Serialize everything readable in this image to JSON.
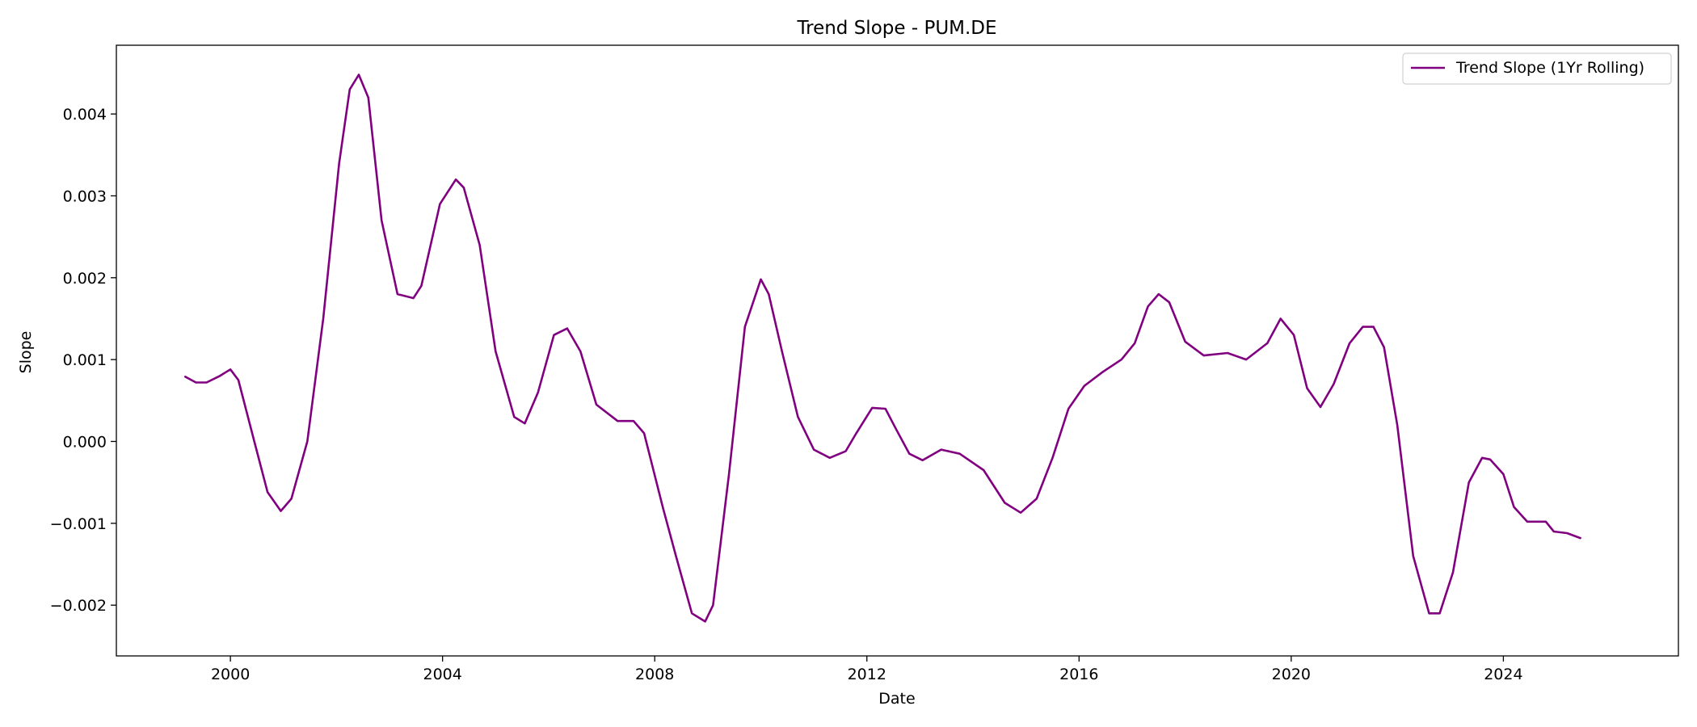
{
  "chart_data": {
    "type": "line",
    "title": "Trend Slope - PUM.DE",
    "xlabel": "Date",
    "ylabel": "Slope",
    "xlim": [
      1997.85,
      2027.3
    ],
    "ylim": [
      -0.00262,
      0.00484
    ],
    "x_ticks": [
      2000,
      2004,
      2008,
      2012,
      2016,
      2020,
      2024
    ],
    "x_tick_labels": [
      "2000",
      "2004",
      "2008",
      "2012",
      "2016",
      "2020",
      "2024"
    ],
    "y_ticks": [
      -0.002,
      -0.001,
      0.0,
      0.001,
      0.002,
      0.003,
      0.004
    ],
    "y_tick_labels": [
      "−0.002",
      "−0.001",
      "0.000",
      "0.001",
      "0.002",
      "0.003",
      "0.004"
    ],
    "grid": false,
    "legend_position": "top-right",
    "series": [
      {
        "name": "Trend Slope (1Yr Rolling)",
        "color": "#800080",
        "x": [
          1999.15,
          1999.35,
          1999.55,
          1999.8,
          2000.0,
          2000.15,
          2000.45,
          2000.7,
          2000.95,
          2001.15,
          2001.45,
          2001.75,
          2002.05,
          2002.25,
          2002.42,
          2002.6,
          2002.85,
          2003.15,
          2003.45,
          2003.6,
          2003.95,
          2004.25,
          2004.4,
          2004.7,
          2005.0,
          2005.35,
          2005.55,
          2005.8,
          2006.1,
          2006.35,
          2006.6,
          2006.9,
          2007.3,
          2007.6,
          2007.8,
          2008.15,
          2008.4,
          2008.7,
          2008.95,
          2009.1,
          2009.4,
          2009.7,
          2010.0,
          2010.15,
          2010.4,
          2010.7,
          2011.0,
          2011.3,
          2011.6,
          2011.8,
          2012.1,
          2012.35,
          2012.55,
          2012.8,
          2013.05,
          2013.4,
          2013.75,
          2014.2,
          2014.6,
          2014.9,
          2015.2,
          2015.5,
          2015.8,
          2016.1,
          2016.45,
          2016.8,
          2017.05,
          2017.3,
          2017.5,
          2017.7,
          2018.0,
          2018.35,
          2018.8,
          2019.15,
          2019.55,
          2019.8,
          2020.05,
          2020.3,
          2020.55,
          2020.8,
          2021.1,
          2021.35,
          2021.55,
          2021.75,
          2022.0,
          2022.3,
          2022.6,
          2022.8,
          2023.05,
          2023.35,
          2023.6,
          2023.75,
          2024.0,
          2024.2,
          2024.45,
          2024.8,
          2024.95,
          2025.2,
          2025.45
        ],
        "y": [
          0.00079,
          0.00072,
          0.00072,
          0.0008,
          0.00088,
          0.00075,
          0.0,
          -0.00062,
          -0.00085,
          -0.0007,
          0.0,
          0.0015,
          0.0034,
          0.0043,
          0.00448,
          0.0042,
          0.0027,
          0.0018,
          0.00175,
          0.0019,
          0.0029,
          0.0032,
          0.0031,
          0.0024,
          0.0011,
          0.0003,
          0.00022,
          0.0006,
          0.0013,
          0.00138,
          0.0011,
          0.00045,
          0.00025,
          0.00025,
          0.0001,
          -0.0008,
          -0.0014,
          -0.0021,
          -0.0022,
          -0.002,
          -0.0004,
          0.0014,
          0.00198,
          0.0018,
          0.0011,
          0.0003,
          -0.0001,
          -0.0002,
          -0.00012,
          0.0001,
          0.00041,
          0.0004,
          0.00015,
          -0.00015,
          -0.00023,
          -0.0001,
          -0.00015,
          -0.00035,
          -0.00075,
          -0.00087,
          -0.0007,
          -0.0002,
          0.0004,
          0.00068,
          0.00085,
          0.001,
          0.0012,
          0.00165,
          0.0018,
          0.0017,
          0.00122,
          0.00105,
          0.00108,
          0.001,
          0.0012,
          0.0015,
          0.0013,
          0.00065,
          0.00042,
          0.0007,
          0.0012,
          0.0014,
          0.0014,
          0.00115,
          0.0002,
          -0.0014,
          -0.0021,
          -0.0021,
          -0.0016,
          -0.0005,
          -0.0002,
          -0.00022,
          -0.0004,
          -0.0008,
          -0.00098,
          -0.00098,
          -0.0011,
          -0.00112,
          -0.00118
        ]
      }
    ]
  }
}
